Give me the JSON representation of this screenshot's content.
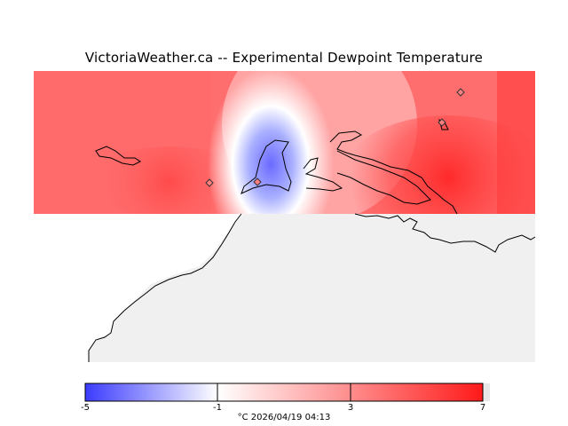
{
  "title": "VictoriaWeather.ca -- Experimental Dewpoint Temperature",
  "colorbar": {
    "min": -5,
    "max": 7,
    "ticks": [
      "-5",
      "-1",
      "3",
      "7"
    ],
    "colors": {
      "low": "#3b3bff",
      "mid": "#ffffff",
      "high": "#ff1a1a"
    }
  },
  "footer": "°C  2026/04/19 04:13",
  "icons": [
    "station-marker-icon"
  ]
}
